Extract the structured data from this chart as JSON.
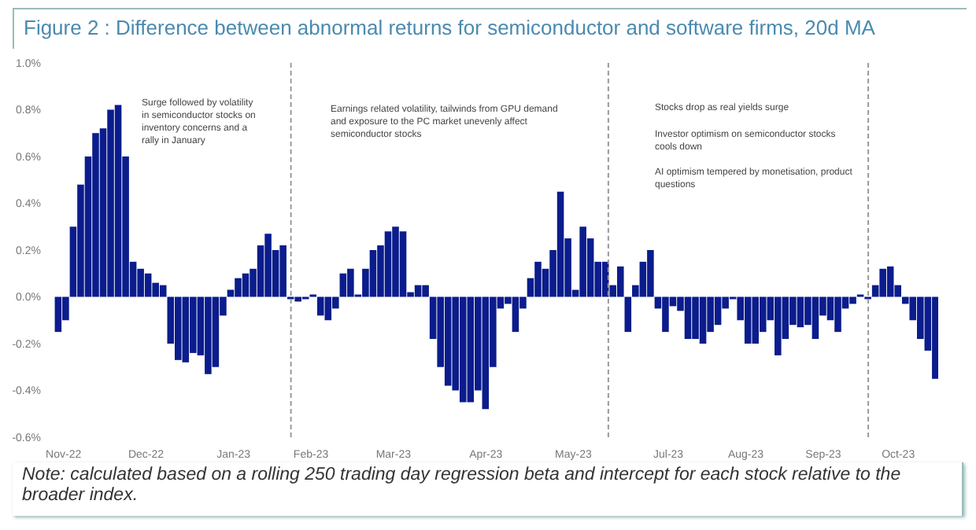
{
  "chart_data": {
    "type": "bar",
    "title": "Figure 2 : Difference between abnormal returns for semiconductor and software firms, 20d MA",
    "annotations": [
      "Surge followed by volatility in semiconductor stocks on inventory concerns and a rally in January",
      "Earnings related volatility, tailwinds from GPU demand and exposure to the PC market unevenly affect semiconductor stocks",
      "Stocks drop as real yields surge",
      "Investor optimism on semiconductor stocks cools down",
      "AI optimism tempered by monetisation, product questions",
      "Note: calculated based on a rolling 250 trading day regression beta and intercept for each stock relative to the broader index."
    ],
    "x": [
      "2022-10-30",
      "2022-11-02",
      "2022-11-05",
      "2022-11-08",
      "2022-11-11",
      "2022-11-14",
      "2022-11-17",
      "2022-11-20",
      "2022-11-23",
      "2022-11-26",
      "2022-11-29",
      "2022-12-02",
      "2022-12-05",
      "2022-12-08",
      "2022-12-11",
      "2022-12-14",
      "2022-12-17",
      "2022-12-20",
      "2022-12-23",
      "2022-12-26",
      "2022-12-29",
      "2023-01-01",
      "2023-01-04",
      "2023-01-07",
      "2023-01-10",
      "2023-01-13",
      "2023-01-16",
      "2023-01-19",
      "2023-01-22",
      "2023-01-25",
      "2023-01-28",
      "2023-01-31",
      "2023-02-03",
      "2023-02-06",
      "2023-02-09",
      "2023-02-12",
      "2023-02-15",
      "2023-02-18",
      "2023-02-21",
      "2023-02-24",
      "2023-02-27",
      "2023-03-02",
      "2023-03-05",
      "2023-03-08",
      "2023-03-11",
      "2023-03-14",
      "2023-03-17",
      "2023-03-20",
      "2023-03-23",
      "2023-03-26",
      "2023-03-29",
      "2023-04-01",
      "2023-04-04",
      "2023-04-07",
      "2023-04-10",
      "2023-04-13",
      "2023-04-16",
      "2023-04-19",
      "2023-04-22",
      "2023-04-25",
      "2023-04-28",
      "2023-05-01",
      "2023-05-04",
      "2023-05-07",
      "2023-05-10",
      "2023-05-13",
      "2023-05-16",
      "2023-05-19",
      "2023-05-22",
      "2023-05-25",
      "2023-05-28",
      "2023-05-31",
      "2023-06-03",
      "2023-06-06",
      "2023-06-09",
      "2023-06-12",
      "2023-06-15",
      "2023-06-18",
      "2023-06-21",
      "2023-06-24",
      "2023-06-27",
      "2023-06-30",
      "2023-07-03",
      "2023-07-06",
      "2023-07-09",
      "2023-07-12",
      "2023-07-15",
      "2023-07-18",
      "2023-07-21",
      "2023-07-24",
      "2023-07-27",
      "2023-07-30",
      "2023-08-02",
      "2023-08-05",
      "2023-08-08",
      "2023-08-11",
      "2023-08-14",
      "2023-08-17",
      "2023-08-20",
      "2023-08-23",
      "2023-08-26",
      "2023-08-29",
      "2023-09-01",
      "2023-09-04",
      "2023-09-07",
      "2023-09-10",
      "2023-09-13",
      "2023-09-16",
      "2023-09-19",
      "2023-09-22",
      "2023-09-25",
      "2023-09-28",
      "2023-10-01",
      "2023-10-04",
      "2023-10-07",
      "2023-10-10",
      "2023-10-13",
      "2023-10-16"
    ],
    "values": [
      -0.15,
      -0.1,
      0.3,
      0.48,
      0.6,
      0.7,
      0.72,
      0.8,
      0.82,
      0.6,
      0.15,
      0.12,
      0.1,
      0.06,
      0.05,
      -0.2,
      -0.27,
      -0.28,
      -0.24,
      -0.25,
      -0.33,
      -0.3,
      -0.08,
      0.03,
      0.08,
      0.1,
      0.12,
      0.22,
      0.27,
      0.2,
      0.22,
      -0.01,
      -0.02,
      -0.01,
      0.01,
      -0.08,
      -0.1,
      -0.05,
      0.1,
      0.12,
      0.01,
      0.12,
      0.2,
      0.22,
      0.28,
      0.3,
      0.28,
      0.02,
      0.05,
      0.05,
      -0.18,
      -0.3,
      -0.38,
      -0.4,
      -0.45,
      -0.45,
      -0.4,
      -0.48,
      -0.3,
      -0.05,
      -0.03,
      -0.15,
      -0.05,
      0.08,
      0.15,
      0.12,
      0.2,
      0.45,
      0.25,
      0.03,
      0.3,
      0.25,
      0.15,
      0.15,
      0.05,
      0.13,
      -0.15,
      0.05,
      0.15,
      0.2,
      -0.05,
      -0.15,
      -0.04,
      -0.06,
      -0.18,
      -0.18,
      -0.2,
      -0.15,
      -0.12,
      -0.05,
      -0.01,
      -0.1,
      -0.2,
      -0.2,
      -0.15,
      -0.1,
      -0.25,
      -0.18,
      -0.12,
      -0.13,
      -0.12,
      -0.18,
      -0.08,
      -0.1,
      -0.15,
      -0.05,
      -0.03,
      0.01,
      -0.01,
      0.05,
      0.12,
      0.13,
      0.05,
      -0.03,
      -0.1,
      -0.18,
      -0.23,
      -0.35
    ],
    "color": "#0b1c8c",
    "xlim": [
      "2022-10-28",
      "2023-10-17"
    ],
    "xticks": [
      {
        "value": "2022-11-01",
        "label": "Nov-22"
      },
      {
        "value": "2022-12-04",
        "label": "Dec-22"
      },
      {
        "value": "2023-01-08",
        "label": "Jan-23"
      },
      {
        "value": "2023-02-08",
        "label": "Feb-23"
      },
      {
        "value": "2023-03-13",
        "label": "Mar-23"
      },
      {
        "value": "2023-04-19",
        "label": "Apr-23"
      },
      {
        "value": "2023-05-24",
        "label": "May-23"
      },
      {
        "value": "2023-07-01",
        "label": "Jul-23"
      },
      {
        "value": "2023-08-01",
        "label": "Aug-23"
      },
      {
        "value": "2023-09-01",
        "label": "Sep-23"
      },
      {
        "value": "2023-10-01",
        "label": "Oct-23"
      }
    ],
    "ylim": [
      -0.6,
      1.0
    ],
    "yticks": [
      {
        "value": -0.6,
        "label": "-0.6%"
      },
      {
        "value": -0.4,
        "label": "-0.4%"
      },
      {
        "value": -0.2,
        "label": "-0.2%"
      },
      {
        "value": 0,
        "label": "0.0%"
      },
      {
        "value": 0.2,
        "label": "0.2%"
      },
      {
        "value": 0.4,
        "label": "0.4%"
      },
      {
        "value": 0.6,
        "label": "0.6%"
      },
      {
        "value": 0.8,
        "label": "0.8%"
      },
      {
        "value": 1.0,
        "label": "1.0%"
      }
    ],
    "ref_lines": [
      {
        "axis": "x",
        "value": "2023-01-31",
        "color": "#9a9a9a",
        "line_style": "dashed"
      },
      {
        "axis": "x",
        "value": "2023-06-07",
        "color": "#9a9a9a",
        "line_style": "dashed"
      },
      {
        "axis": "x",
        "value": "2023-09-19",
        "color": "#9a9a9a",
        "line_style": "dashed"
      }
    ],
    "grid": false
  }
}
